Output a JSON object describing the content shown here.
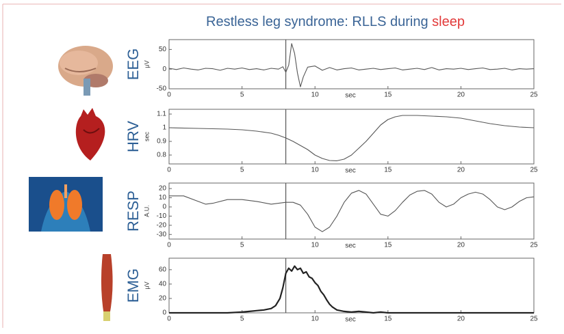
{
  "title": "Restless leg syndrome: RLLS during",
  "title_highlight": "sleep",
  "chart_data": [
    {
      "type": "line",
      "ylabel": "EEG",
      "unit": "μV",
      "xlabel": "sec",
      "color": "#555555",
      "xlim": [
        0,
        25
      ],
      "xticks": [
        0,
        5,
        10,
        15,
        20,
        25
      ],
      "ylim": [
        -50,
        75
      ],
      "yticks": [
        -50,
        0,
        50
      ],
      "marker_x": 8,
      "x": [
        0,
        0.5,
        1,
        1.5,
        2,
        2.5,
        3,
        3.5,
        4,
        4.5,
        5,
        5.5,
        6,
        6.5,
        7,
        7.5,
        7.8,
        8,
        8.2,
        8.4,
        8.6,
        8.8,
        9,
        9.2,
        9.5,
        10,
        10.5,
        11,
        11.5,
        12,
        12.5,
        13,
        13.5,
        14,
        14.5,
        15,
        15.5,
        16,
        16.5,
        17,
        17.5,
        18,
        18.5,
        19,
        19.5,
        20,
        20.5,
        21,
        21.5,
        22,
        22.5,
        23,
        23.5,
        24,
        24.5,
        25
      ],
      "values": [
        2,
        -1,
        3,
        0,
        -2,
        2,
        1,
        -3,
        2,
        0,
        3,
        -1,
        1,
        -2,
        2,
        0,
        6,
        -8,
        10,
        65,
        40,
        -10,
        -45,
        -20,
        5,
        8,
        -3,
        4,
        -2,
        1,
        3,
        -2,
        0,
        2,
        -1,
        1,
        3,
        -2,
        0,
        2,
        -1,
        4,
        -2,
        1,
        0,
        2,
        -1,
        1,
        3,
        -1,
        0,
        2,
        -2,
        1,
        0,
        1
      ]
    },
    {
      "type": "line",
      "ylabel": "HRV",
      "unit": "sec",
      "xlabel": "sec",
      "color": "#555555",
      "xlim": [
        0,
        25
      ],
      "xticks": [
        0,
        5,
        10,
        15,
        20,
        25
      ],
      "ylim": [
        0.735,
        1.135
      ],
      "yticks": [
        0.8,
        0.9,
        1,
        1.1
      ],
      "marker_x": 8,
      "x": [
        0,
        2,
        4,
        5,
        6,
        7,
        7.5,
        8,
        8.5,
        9,
        9.5,
        10,
        10.5,
        11,
        11.5,
        12,
        12.5,
        13,
        13.5,
        14,
        14.5,
        15,
        15.5,
        16,
        17,
        18,
        19,
        20,
        21,
        22,
        23,
        24,
        25
      ],
      "values": [
        1,
        0.995,
        0.99,
        0.985,
        0.975,
        0.96,
        0.945,
        0.925,
        0.9,
        0.87,
        0.84,
        0.8,
        0.775,
        0.76,
        0.758,
        0.77,
        0.8,
        0.85,
        0.9,
        0.96,
        1.02,
        1.06,
        1.08,
        1.09,
        1.09,
        1.085,
        1.08,
        1.07,
        1.05,
        1.03,
        1.015,
        1.005,
        1
      ]
    },
    {
      "type": "line",
      "ylabel": "RESP",
      "unit": "A.U.",
      "xlabel": "sec",
      "color": "#555555",
      "xlim": [
        0,
        25
      ],
      "xticks": [
        0,
        5,
        10,
        15,
        20,
        25
      ],
      "ylim": [
        -35,
        26
      ],
      "yticks": [
        -30,
        -20,
        -10,
        0,
        10,
        20
      ],
      "marker_x": 8,
      "x": [
        0,
        1,
        2,
        2.5,
        3,
        4,
        5,
        6,
        7,
        8,
        8.5,
        9,
        9.5,
        10,
        10.5,
        11,
        11.5,
        12,
        12.5,
        13,
        13.5,
        14,
        14.5,
        15,
        15.5,
        16,
        16.5,
        17,
        17.5,
        18,
        18.5,
        19,
        19.5,
        20,
        20.5,
        21,
        21.5,
        22,
        22.5,
        23,
        23.5,
        24,
        24.5,
        25
      ],
      "values": [
        12,
        12,
        6,
        3,
        4,
        8,
        8,
        6,
        3,
        5,
        5,
        2,
        -8,
        -22,
        -27,
        -22,
        -10,
        5,
        15,
        18,
        14,
        3,
        -8,
        -10,
        -4,
        5,
        13,
        17,
        18,
        14,
        5,
        0,
        3,
        10,
        14,
        16,
        14,
        8,
        0,
        -3,
        0,
        6,
        10,
        11
      ]
    },
    {
      "type": "line",
      "ylabel": "EMG",
      "unit": "μV",
      "xlabel": "sec",
      "color": "#222222",
      "xlim": [
        0,
        25
      ],
      "xticks": [
        0,
        5,
        10,
        15,
        20,
        25
      ],
      "ylim": [
        0,
        76
      ],
      "yticks": [
        0,
        20,
        40,
        60
      ],
      "marker_x": 8,
      "x": [
        0,
        2,
        4,
        5,
        5.5,
        6,
        6.5,
        7,
        7.3,
        7.6,
        7.8,
        8,
        8.2,
        8.4,
        8.6,
        8.8,
        9,
        9.2,
        9.4,
        9.6,
        9.8,
        10,
        10.2,
        10.4,
        10.6,
        10.8,
        11,
        11.2,
        11.5,
        12,
        12.5,
        13,
        13.5,
        14,
        14.5,
        15,
        20,
        25
      ],
      "values": [
        0,
        0,
        0,
        1,
        2,
        3,
        4,
        6,
        10,
        20,
        35,
        55,
        62,
        58,
        65,
        60,
        62,
        55,
        57,
        50,
        48,
        42,
        38,
        30,
        25,
        18,
        12,
        8,
        4,
        2,
        1,
        2,
        1,
        0,
        1,
        0,
        0,
        0
      ]
    }
  ]
}
